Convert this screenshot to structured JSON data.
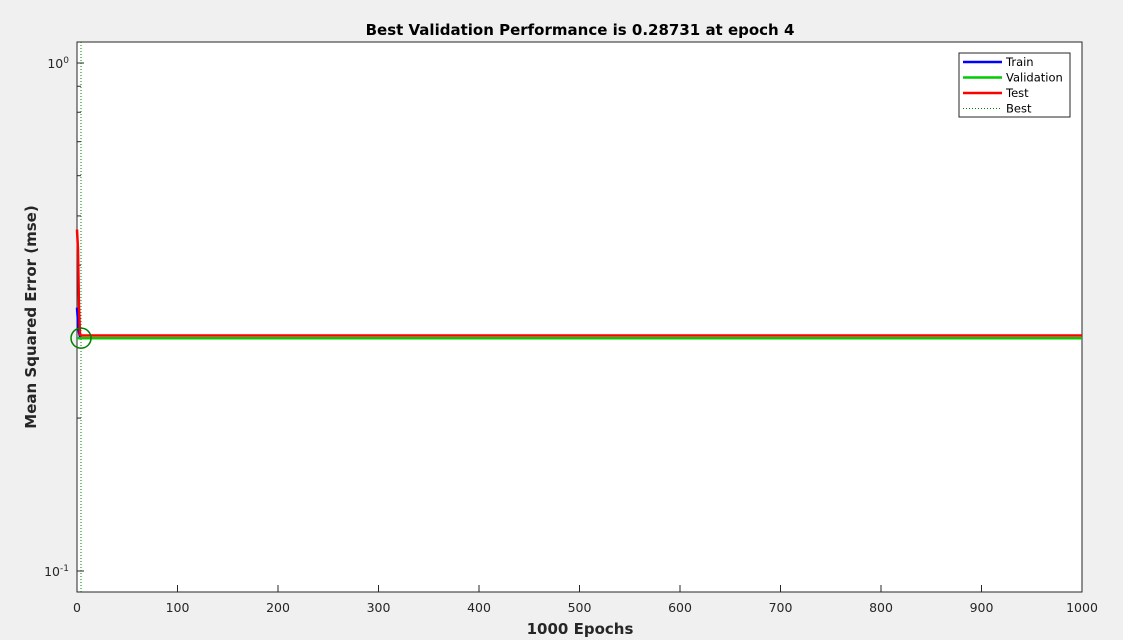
{
  "chart_data": {
    "type": "line",
    "title": "Best Validation Performance is 0.28731 at epoch 4",
    "xlabel": "1000 Epochs",
    "ylabel": "Mean Squared Error  (mse)",
    "xlim": [
      0,
      1000
    ],
    "ylim": [
      0.09,
      1.1
    ],
    "yscale": "log",
    "xticks": [
      0,
      100,
      200,
      300,
      400,
      500,
      600,
      700,
      800,
      900,
      1000
    ],
    "yticks": [
      {
        "value": 0.1,
        "base": "10",
        "exp": "-1"
      },
      {
        "value": 1,
        "base": "10",
        "exp": "0"
      }
    ],
    "grid": false,
    "legend_position": "top-right",
    "series": [
      {
        "name": "Train",
        "color": "#0000ff",
        "style": "solid",
        "x": [
          0,
          1,
          2,
          3,
          4,
          1000
        ],
        "y": [
          0.33,
          0.31,
          0.295,
          0.289,
          0.2873,
          0.2873
        ]
      },
      {
        "name": "Validation",
        "color": "#00cc00",
        "style": "solid",
        "x": [
          0,
          4,
          1000
        ],
        "y": [
          0.2873,
          0.2873,
          0.2873
        ]
      },
      {
        "name": "Test",
        "color": "#ff0000",
        "style": "solid",
        "x": [
          0,
          1,
          2,
          3,
          4,
          1000
        ],
        "y": [
          0.47,
          0.43,
          0.33,
          0.292,
          0.2908,
          0.2908
        ]
      },
      {
        "name": "Best",
        "color": "#008000",
        "style": "dotted",
        "x": [
          4,
          4
        ],
        "y": [
          0.09,
          1.1
        ]
      }
    ],
    "best_marker": {
      "epoch": 4,
      "value": 0.28731,
      "color": "#008000"
    }
  }
}
